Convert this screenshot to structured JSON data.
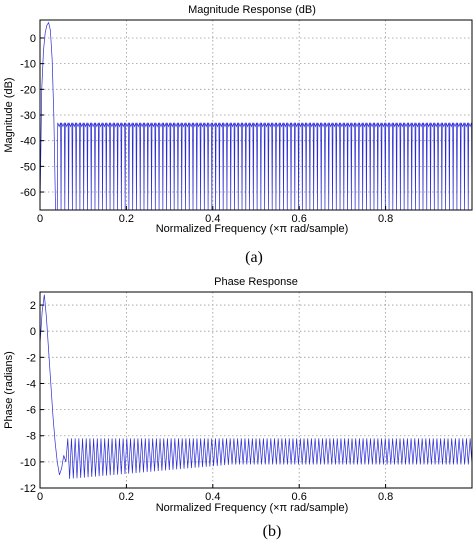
{
  "chart_data": [
    {
      "type": "line",
      "title": "Magnitude Response (dB)",
      "xlabel": "Normalized Frequency (×π rad/sample)",
      "ylabel": "Magnitude (dB)",
      "xlim": [
        0,
        1
      ],
      "ylim": [
        -67,
        7
      ],
      "xticks": [
        0,
        0.2,
        0.4,
        0.6,
        0.8
      ],
      "xtick_labels": [
        "0",
        "0.2",
        "0.4",
        "0.6",
        "0.8"
      ],
      "yticks": [
        0,
        -10,
        -20,
        -30,
        -40,
        -50,
        -60
      ],
      "ytick_labels": [
        "0",
        "-10",
        "-20",
        "-30",
        "-40",
        "-50",
        "-60"
      ],
      "grid": true,
      "color": "#2b2bd6",
      "series": [
        {
          "passband": {
            "x": [
              0,
              0.004,
              0.008,
              0.012,
              0.016,
              0.02,
              0.024,
              0.028,
              0.032,
              0.036
            ],
            "y": [
              -67,
              -20,
              -5,
              2,
              5,
              6,
              3,
              -8,
              -30,
              -67
            ]
          },
          "stopband": {
            "x_start": 0.04,
            "x_end": 1.0,
            "lobe_count": 110,
            "lobe_peak": -33,
            "floor": -67
          }
        }
      ],
      "caption": "(a)"
    },
    {
      "type": "line",
      "title": "Phase Response",
      "xlabel": "Normalized Frequency (×π rad/sample)",
      "ylabel": "Phase (radians)",
      "xlim": [
        0,
        1
      ],
      "ylim": [
        -12,
        3
      ],
      "xticks": [
        0,
        0.2,
        0.4,
        0.6,
        0.8
      ],
      "xtick_labels": [
        "0",
        "0.2",
        "0.4",
        "0.6",
        "0.8"
      ],
      "yticks": [
        2,
        0,
        -2,
        -4,
        -6,
        -8,
        -10,
        -12
      ],
      "ytick_labels": [
        "2",
        "0",
        "-2",
        "-4",
        "-6",
        "-8",
        "-10",
        "-12"
      ],
      "grid": true,
      "color": "#2b2bd6",
      "series": [
        {
          "x": [
            0,
            0.005,
            0.01,
            0.015,
            0.02,
            0.025,
            0.03,
            0.035,
            0.04,
            0.045,
            0.05,
            0.055,
            0.06
          ],
          "y": [
            -1,
            1.5,
            2.8,
            1,
            -1.5,
            -4,
            -6.5,
            -8.5,
            -10,
            -11,
            -10.5,
            -9.5,
            -10
          ],
          "oscillation": {
            "x_start": 0.06,
            "x_end": 1.0,
            "cycles": 110,
            "upper": -8.2,
            "lower_start": -11.3,
            "lower_end": -10.2
          }
        }
      ],
      "caption": "(b)"
    }
  ]
}
